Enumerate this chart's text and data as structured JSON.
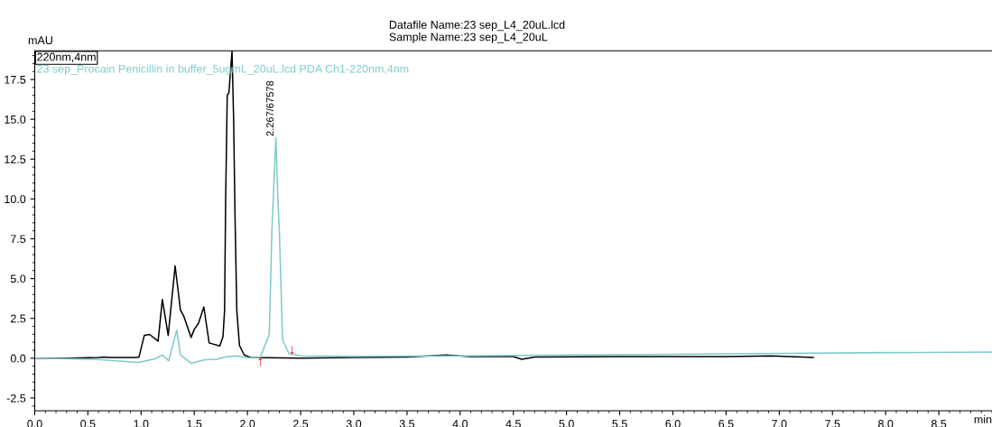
{
  "chart_data": {
    "type": "line",
    "title": "Datafile Name:23 sep_L4_20uL.lcd\nSample Name:23 sep_L4_20uL",
    "xlabel": "min",
    "ylabel": "mAU",
    "xlim": [
      0,
      9.0
    ],
    "ylim": [
      -3.3,
      19.3
    ],
    "xticks": [
      {
        "value": 0,
        "label": "0.0"
      },
      0.5,
      {
        "value": 1,
        "label": "1.0"
      },
      1.5,
      {
        "value": 2,
        "label": "2.0"
      },
      2.5,
      {
        "value": 3,
        "label": "3.0"
      },
      3.5,
      {
        "value": 4,
        "label": "4.0"
      },
      4.5,
      {
        "value": 5,
        "label": "5.0"
      },
      5.5,
      {
        "value": 6,
        "label": "6.0"
      },
      6.5,
      {
        "value": 7,
        "label": "7.0"
      },
      7.5,
      {
        "value": 8,
        "label": "8.0"
      },
      8.5
    ],
    "yticks": [
      -2.5,
      {
        "value": 0,
        "label": "0.0"
      },
      2.5,
      {
        "value": 5,
        "label": "5.0"
      },
      7.5,
      {
        "value": 10,
        "label": "10.0"
      },
      12.5,
      {
        "value": 15,
        "label": "15.0"
      },
      17.5
    ],
    "grid": false,
    "legend": "top left",
    "marker": "none",
    "line_style": "solid",
    "series": [
      {
        "name": "220nm,4nm",
        "color": "#000000",
        "x": [
          0,
          0.3,
          0.6,
          0.65,
          0.7,
          0.95,
          0.98,
          1.03,
          1.08,
          1.16,
          1.2,
          1.255,
          1.32,
          1.37,
          1.4,
          1.47,
          1.5,
          1.54,
          1.59,
          1.64,
          1.74,
          1.77,
          1.785,
          1.795,
          1.81,
          1.826,
          1.835,
          1.855,
          1.87,
          1.883,
          1.9,
          1.925,
          1.97,
          2.03,
          2.5,
          3.0,
          3.5,
          3.87,
          4.1,
          4.5,
          4.58,
          4.7,
          5.5,
          6.5,
          6.93,
          7.32
        ],
        "values": [
          0,
          0.0,
          0.05,
          0.08,
          0.05,
          0.05,
          0.07,
          1.43,
          1.49,
          1.07,
          3.69,
          1.43,
          5.8,
          3.03,
          2.66,
          1.3,
          1.81,
          2.2,
          3.22,
          0.96,
          0.77,
          1.35,
          3.0,
          10.0,
          16.5,
          16.68,
          17.5,
          19.27,
          15.0,
          9.0,
          3.0,
          0.8,
          0.2,
          0.05,
          0.0,
          0.05,
          0.08,
          0.2,
          0.1,
          0.1,
          -0.07,
          0.08,
          0.1,
          0.1,
          0.15,
          0.05
        ]
      },
      {
        "name": "23 sep_Procain Penicillin in buffer_5ugmL_20uL.lcd PDA Ch1-220nm,4nm",
        "color": "#7fcaca",
        "x": [
          0,
          0.53,
          0.975,
          1.12,
          1.2,
          1.26,
          1.335,
          1.37,
          1.47,
          1.6,
          1.71,
          1.81,
          1.9,
          1.99,
          2.12,
          2.205,
          2.23,
          2.267,
          2.29,
          2.3,
          2.33,
          2.39,
          2.5,
          3.0,
          4.0,
          5.0,
          6.0,
          7.0,
          8.0,
          9.0
        ],
        "values": [
          0,
          -0.06,
          -0.26,
          -0.06,
          0.2,
          -0.17,
          1.77,
          0.21,
          -0.32,
          -0.1,
          -0.07,
          0.1,
          0.15,
          0.03,
          0.05,
          1.5,
          8.0,
          13.85,
          9.4,
          8.0,
          1.15,
          0.3,
          0.15,
          0.12,
          0.15,
          0.2,
          0.25,
          0.3,
          0.35,
          0.38
        ]
      }
    ],
    "annotations": [
      {
        "text": "2.267/67578",
        "x": 2.267,
        "y": 13.85
      },
      {
        "text": "↑",
        "x": 2.12,
        "y": -0.25
      },
      {
        "text": "↓",
        "x": 2.42,
        "y": 0.5
      }
    ]
  }
}
